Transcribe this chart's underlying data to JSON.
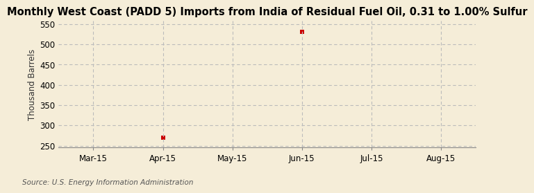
{
  "title": "Monthly West Coast (PADD 5) Imports from India of Residual Fuel Oil, 0.31 to 1.00% Sulfur",
  "ylabel": "Thousand Barrels",
  "source": "Source: U.S. Energy Information Administration",
  "background_color": "#f5edd8",
  "plot_bg_color": "#f5edd8",
  "data_dates": [
    1,
    3
  ],
  "data_y": [
    270,
    530
  ],
  "x_tick_positions": [
    0,
    1,
    2,
    3,
    4,
    5
  ],
  "x_tick_labels": [
    "Mar-15",
    "Apr-15",
    "May-15",
    "Jun-15",
    "Jul-15",
    "Aug-15"
  ],
  "xlim": [
    -0.5,
    5.5
  ],
  "ylim": [
    245,
    558
  ],
  "yticks": [
    250,
    300,
    350,
    400,
    450,
    500,
    550
  ],
  "marker_color": "#cc0000",
  "marker_size": 4,
  "grid_color": "#bbbbbb",
  "title_fontsize": 10.5,
  "label_fontsize": 8.5,
  "tick_fontsize": 8.5,
  "source_fontsize": 7.5
}
